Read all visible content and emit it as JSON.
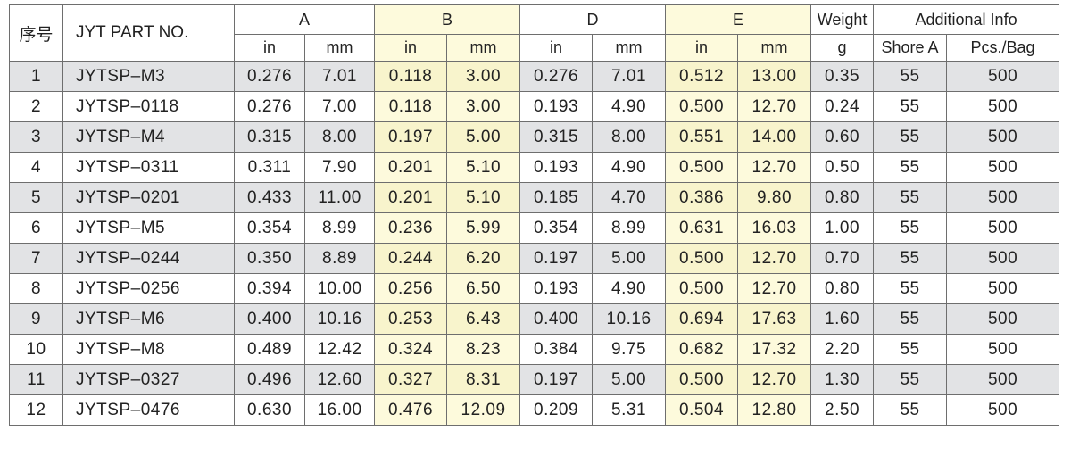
{
  "headers": {
    "index": "序号",
    "part_no": "JYT PART NO.",
    "groups": {
      "A": "A",
      "B": "B",
      "D": "D",
      "E": "E",
      "weight": "Weight",
      "additional": "Additional Info"
    },
    "sub": {
      "a_in": "in",
      "a_mm": "mm",
      "b_in": "in",
      "b_mm": "mm",
      "d_in": "in",
      "d_mm": "mm",
      "e_in": "in",
      "e_mm": "mm",
      "weight_unit": "g",
      "shore": "Shore A",
      "pcs": "Pcs./Bag"
    }
  },
  "rows": [
    [
      "1",
      "JYTSP–M3",
      "0.276",
      "7.01",
      "0.118",
      "3.00",
      "0.276",
      "7.01",
      "0.512",
      "13.00",
      "0.35",
      "55",
      "500"
    ],
    [
      "2",
      "JYTSP–0118",
      "0.276",
      "7.00",
      "0.118",
      "3.00",
      "0.193",
      "4.90",
      "0.500",
      "12.70",
      "0.24",
      "55",
      "500"
    ],
    [
      "3",
      "JYTSP–M4",
      "0.315",
      "8.00",
      "0.197",
      "5.00",
      "0.315",
      "8.00",
      "0.551",
      "14.00",
      "0.60",
      "55",
      "500"
    ],
    [
      "4",
      "JYTSP–0311",
      "0.311",
      "7.90",
      "0.201",
      "5.10",
      "0.193",
      "4.90",
      "0.500",
      "12.70",
      "0.50",
      "55",
      "500"
    ],
    [
      "5",
      "JYTSP–0201",
      "0.433",
      "11.00",
      "0.201",
      "5.10",
      "0.185",
      "4.70",
      "0.386",
      "9.80",
      "0.80",
      "55",
      "500"
    ],
    [
      "6",
      "JYTSP–M5",
      "0.354",
      "8.99",
      "0.236",
      "5.99",
      "0.354",
      "8.99",
      "0.631",
      "16.03",
      "1.00",
      "55",
      "500"
    ],
    [
      "7",
      "JYTSP–0244",
      "0.350",
      "8.89",
      "0.244",
      "6.20",
      "0.197",
      "5.00",
      "0.500",
      "12.70",
      "0.70",
      "55",
      "500"
    ],
    [
      "8",
      "JYTSP–0256",
      "0.394",
      "10.00",
      "0.256",
      "6.50",
      "0.193",
      "4.90",
      "0.500",
      "12.70",
      "0.80",
      "55",
      "500"
    ],
    [
      "9",
      "JYTSP–M6",
      "0.400",
      "10.16",
      "0.253",
      "6.43",
      "0.400",
      "10.16",
      "0.694",
      "17.63",
      "1.60",
      "55",
      "500"
    ],
    [
      "10",
      "JYTSP–M8",
      "0.489",
      "12.42",
      "0.324",
      "8.23",
      "0.384",
      "9.75",
      "0.682",
      "17.32",
      "2.20",
      "55",
      "500"
    ],
    [
      "11",
      "JYTSP–0327",
      "0.496",
      "12.60",
      "0.327",
      "8.31",
      "0.197",
      "5.00",
      "0.500",
      "12.70",
      "1.30",
      "55",
      "500"
    ],
    [
      "12",
      "JYTSP–0476",
      "0.630",
      "16.00",
      "0.476",
      "12.09",
      "0.209",
      "5.31",
      "0.504",
      "12.80",
      "2.50",
      "55",
      "500"
    ]
  ],
  "colors": {
    "grid": "#6e6e6e",
    "row_shade": "#e2e3e5",
    "highlight_col": "#fdfadc",
    "highlight_col_shaded": "#f8f4cc"
  }
}
